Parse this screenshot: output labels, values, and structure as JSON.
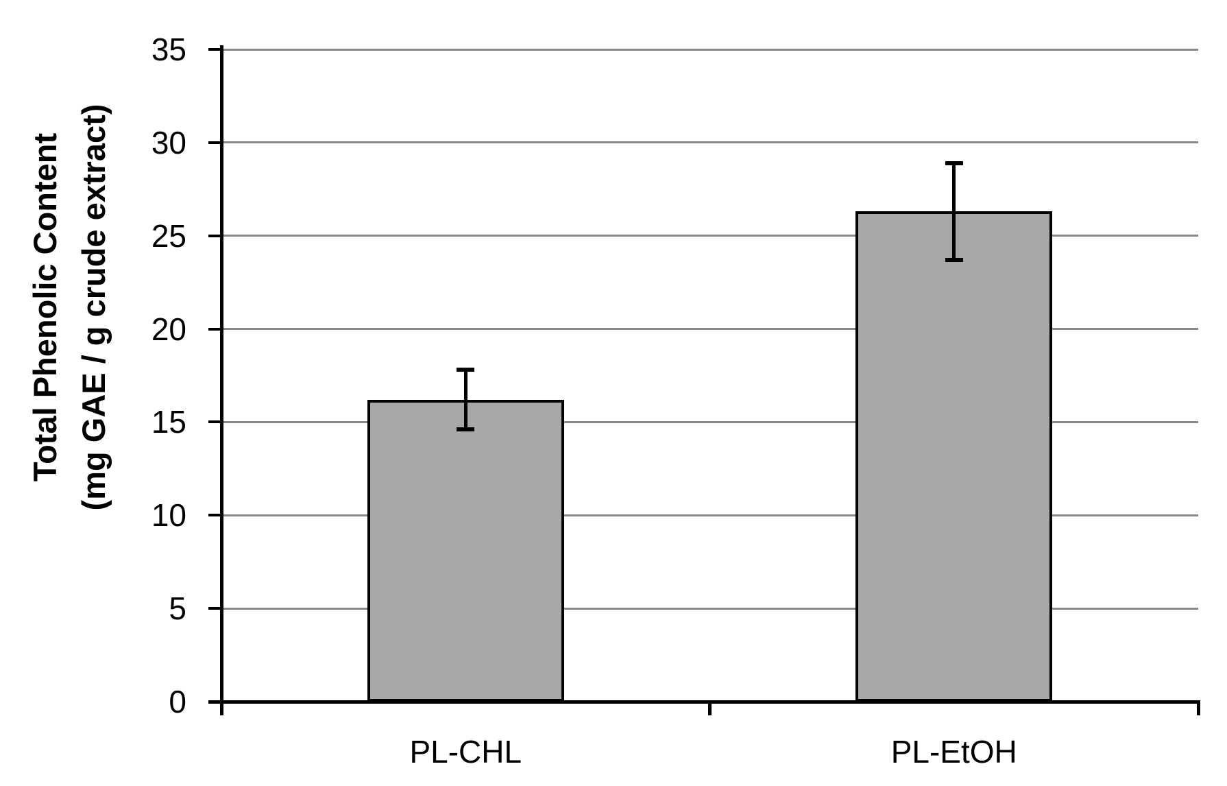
{
  "chart": {
    "y_axis_title_line1": "Total Phenolic Content",
    "y_axis_title_line2": "(mg GAE / g crude extract)"
  },
  "chart_data": {
    "type": "bar",
    "categories": [
      "PL-CHL",
      "PL-EtOH"
    ],
    "values": [
      16.2,
      26.3
    ],
    "error_bars": [
      1.6,
      2.6
    ],
    "title": "",
    "xlabel": "",
    "ylabel": "Total Phenolic Content (mg GAE / g crude extract)",
    "ylim": [
      0,
      35
    ],
    "yticks": [
      0,
      5,
      10,
      15,
      20,
      25,
      30,
      35
    ],
    "grid": true,
    "legend": "none",
    "colors": {
      "bar_fill": "#a8a8a8",
      "bar_border": "#000000",
      "gridline": "#888888",
      "axis": "#000000",
      "error_bar": "#000000",
      "text": "#000000"
    }
  }
}
